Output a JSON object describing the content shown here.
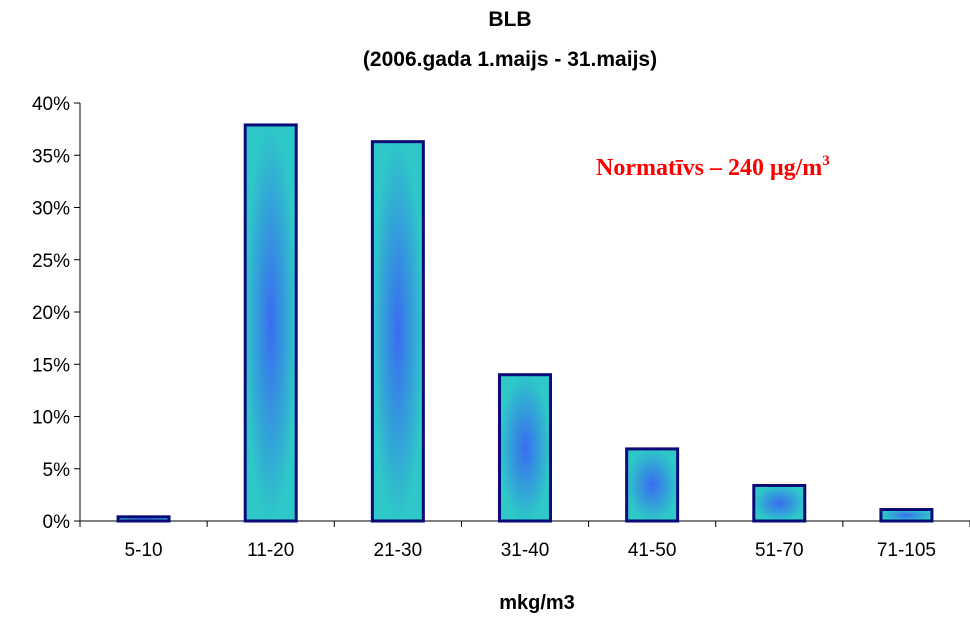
{
  "chart_data": {
    "type": "bar",
    "title": "BLB",
    "subtitle": "(2006.gada 1.maijs - 31.maijs)",
    "xlabel": "mkg/m3",
    "ylabel": "",
    "categories": [
      "5-10",
      "11-20",
      "21-30",
      "31-40",
      "41-50",
      "51-70",
      "71-105"
    ],
    "values": [
      0.4,
      37.9,
      36.3,
      14.0,
      6.9,
      3.4,
      1.1
    ],
    "ylim": [
      0,
      40
    ],
    "yticks": [
      0,
      5,
      10,
      15,
      20,
      25,
      30,
      35,
      40
    ],
    "ytick_labels": [
      "0%",
      "5%",
      "10%",
      "15%",
      "20%",
      "25%",
      "30%",
      "35%",
      "40%"
    ],
    "grid": false,
    "legend": "none",
    "annotation": {
      "text": "Normatīvs – 240 μg/m",
      "superscript": "3",
      "color": "#ff0000"
    },
    "colors": {
      "bar_edge": "#0a0a78",
      "bar_fill_outer": "#2ec8c8",
      "bar_fill_inner": "#3a6cf0"
    }
  }
}
